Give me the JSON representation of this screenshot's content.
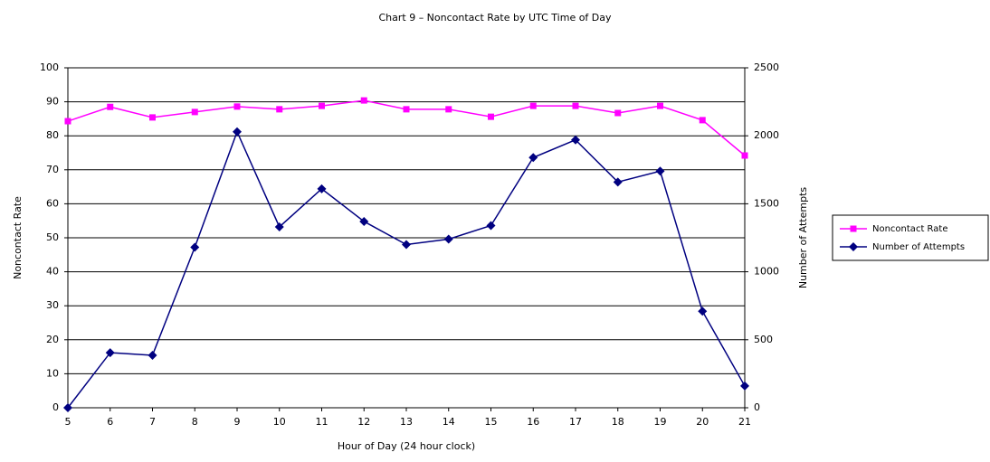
{
  "chart_data": {
    "type": "line",
    "title": "Chart 9 – Noncontact Rate by UTC Time of Day",
    "x_label": "Hour of Day (24 hour clock)",
    "y_label": "Noncontact Rate",
    "y2_label": "Number of Attempts",
    "categories": [
      "5",
      "6",
      "7",
      "8",
      "9",
      "10",
      "11",
      "12",
      "13",
      "14",
      "15",
      "16",
      "17",
      "18",
      "19",
      "20",
      "21"
    ],
    "series": [
      {
        "name": "Noncontact Rate",
        "color": "#ff00ff",
        "marker": "square",
        "values": [
          84.3,
          88.5,
          85.4,
          87,
          88.6,
          87.8,
          88.8,
          90.4,
          87.8,
          87.8,
          85.6,
          88.8,
          88.8,
          86.7,
          88.8,
          84.6,
          74.2
        ]
      },
      {
        "name": "Number of Attempts",
        "color": "#000080",
        "marker": "diamond",
        "axis": "y2",
        "values": [
          0,
          405,
          386,
          1180,
          2030,
          1330,
          1610,
          1370,
          1200,
          1240,
          1340,
          1840,
          1970,
          1660,
          1740,
          710,
          160
        ]
      }
    ],
    "ylim": [
      0,
      100
    ],
    "yticks": [
      0,
      10,
      20,
      30,
      40,
      50,
      60,
      70,
      80,
      90,
      100
    ],
    "y2lim": [
      0,
      2500
    ],
    "y2ticks": [
      0,
      500,
      1000,
      1500,
      2000,
      2500
    ],
    "grid": true,
    "legend": "right"
  }
}
